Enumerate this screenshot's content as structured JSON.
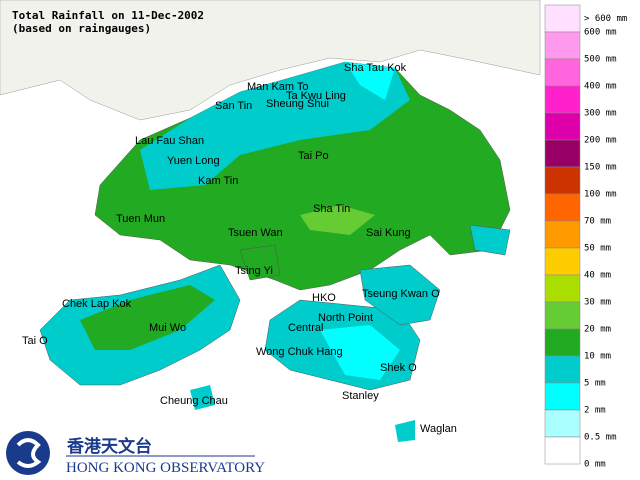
{
  "title": "Total Rainfall on 11-Dec-2002",
  "subtitle": "(based on raingauges)",
  "places": [
    "Sha Tau Kok",
    "Man Kam To",
    "Ta Kwu Ling",
    "Sheung Shui",
    "San Tin",
    "Lau Fau Shan",
    "Yuen Long",
    "Tai Po",
    "Kam Tin",
    "Sha Tin",
    "Tuen Mun",
    "Tsuen Wan",
    "Sai Kung",
    "Tsing Yi",
    "Chek Lap Kok",
    "Tseung Kwan O",
    "HKO",
    "North Point",
    "Mui Wo",
    "Central",
    "Tai O",
    "Wong Chuk Hang",
    "Shek O",
    "Stanley",
    "Cheung Chau",
    "Waglan"
  ],
  "legend": {
    "colors": [
      "#ffe0ff",
      "#ff99ee",
      "#ff66dd",
      "#ff22cc",
      "#dd00aa",
      "#990066",
      "#cc3300",
      "#ff6600",
      "#ff9900",
      "#ffcc00",
      "#aadd00",
      "#66cc33",
      "#22aa22",
      "#00cccc",
      "#00ffff",
      "#aaffff",
      "#ffffff"
    ],
    "labels": [
      "> 600 mm",
      "600 mm",
      "500 mm",
      "400 mm",
      "300 mm",
      "200 mm",
      "150 mm",
      "100 mm",
      "70 mm",
      "50 mm",
      "40 mm",
      "30 mm",
      "20 mm",
      "10 mm",
      "5 mm",
      "2 mm",
      "0.5 mm",
      "0 mm"
    ]
  },
  "logo": {
    "chinese": "香港天文台",
    "english": "HONG KONG OBSERVATORY"
  }
}
